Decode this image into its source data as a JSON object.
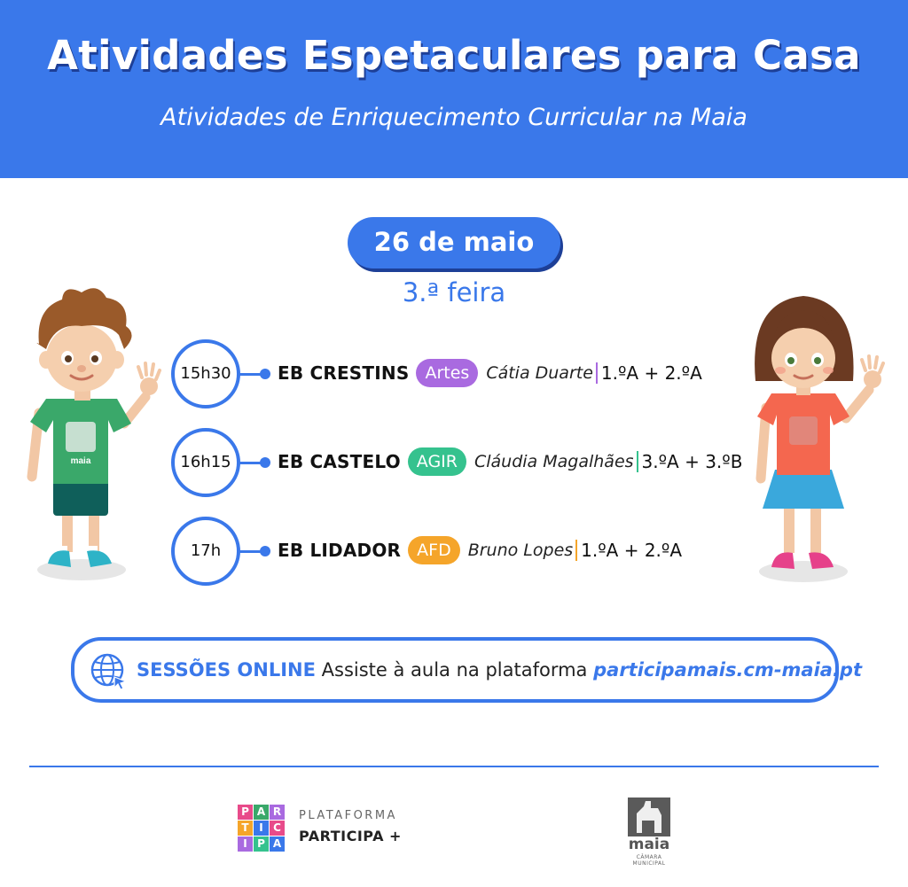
{
  "header": {
    "title": "Atividades Espetaculares para Casa",
    "subtitle": "Atividades de Enriquecimento Curricular na Maia"
  },
  "date": "26 de maio",
  "weekday": "3.ª feira",
  "sessions": [
    {
      "time": "15h30",
      "school": "EB CRESTINS",
      "tag": "Artes",
      "tag_color": "#a96ae0",
      "teacher": "Cátia Duarte",
      "classes": "1.ºA + 2.ºA"
    },
    {
      "time": "16h15",
      "school": "EB CASTELO",
      "tag": "AGIR",
      "tag_color": "#35c28e",
      "teacher": "Cláudia Magalhães",
      "classes": "3.ºA + 3.ºB"
    },
    {
      "time": "17h",
      "school": "EB LIDADOR",
      "tag": "AFD",
      "tag_color": "#f5a52a",
      "teacher": "Bruno Lopes",
      "classes": "1.ºA + 2.ºA"
    }
  ],
  "online": {
    "label": "SESSÕES ONLINE",
    "description": "Assiste à aula na plataforma",
    "link": "participamais.cm-maia.pt",
    "icon": "globe-cursor-icon"
  },
  "footer": {
    "participa_logo_letters": [
      "PAR",
      "TIC",
      "IPA"
    ],
    "platform_label": "PLATAFORMA",
    "platform_name": "PARTICIPA +",
    "maia_logo_word": "maia",
    "maia_logo_sub": "CÂMARA MUNICIPAL"
  },
  "colors": {
    "brand_blue": "#3a78ea",
    "brand_blue_dark": "#1d3f97"
  }
}
